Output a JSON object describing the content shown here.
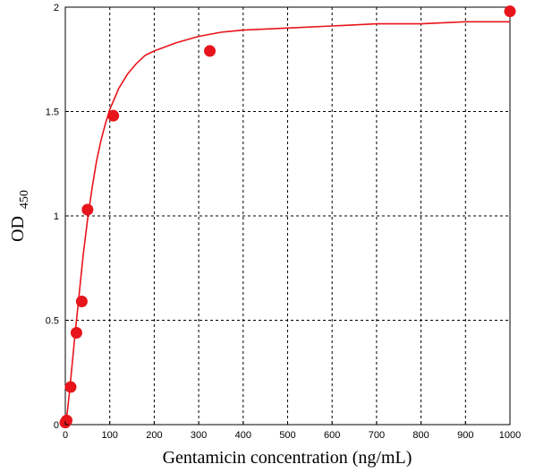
{
  "chart_data": {
    "type": "scatter",
    "title": "",
    "xlabel": "Gentamicin concentration (ng/mL)",
    "ylabel": "OD",
    "ylabel_subscript": "450",
    "xlim": [
      0,
      1000
    ],
    "ylim": [
      0,
      2
    ],
    "x_ticks": [
      0,
      100,
      200,
      300,
      400,
      500,
      600,
      700,
      800,
      900,
      1000
    ],
    "y_ticks": [
      0,
      0.5,
      1,
      1.5,
      2
    ],
    "x_tick_labels": [
      "0",
      "100",
      "200",
      "300",
      "400",
      "500",
      "600",
      "700",
      "800",
      "900",
      "1000"
    ],
    "y_tick_labels": [
      "0",
      "0.5",
      "1",
      "1.5",
      "2"
    ],
    "grid": true,
    "grid_style": "dashed",
    "series": [
      {
        "kind": "points",
        "color": "#e8141b",
        "x": [
          0,
          3,
          12,
          25,
          37,
          50,
          108,
          325,
          1000
        ],
        "y": [
          0.01,
          0.02,
          0.18,
          0.44,
          0.59,
          1.03,
          1.48,
          1.79,
          1.98
        ]
      },
      {
        "kind": "fitted-curve",
        "color": "#e8141b",
        "x": [
          0,
          5,
          10,
          20,
          30,
          40,
          50,
          60,
          70,
          80,
          90,
          100,
          110,
          120,
          140,
          160,
          180,
          200,
          250,
          300,
          350,
          400,
          500,
          600,
          700,
          800,
          900,
          1000
        ],
        "y": [
          0.0,
          0.07,
          0.17,
          0.39,
          0.6,
          0.81,
          0.98,
          1.13,
          1.26,
          1.36,
          1.44,
          1.51,
          1.56,
          1.61,
          1.68,
          1.73,
          1.77,
          1.79,
          1.83,
          1.86,
          1.88,
          1.89,
          1.9,
          1.91,
          1.92,
          1.92,
          1.93,
          1.93
        ]
      }
    ]
  }
}
